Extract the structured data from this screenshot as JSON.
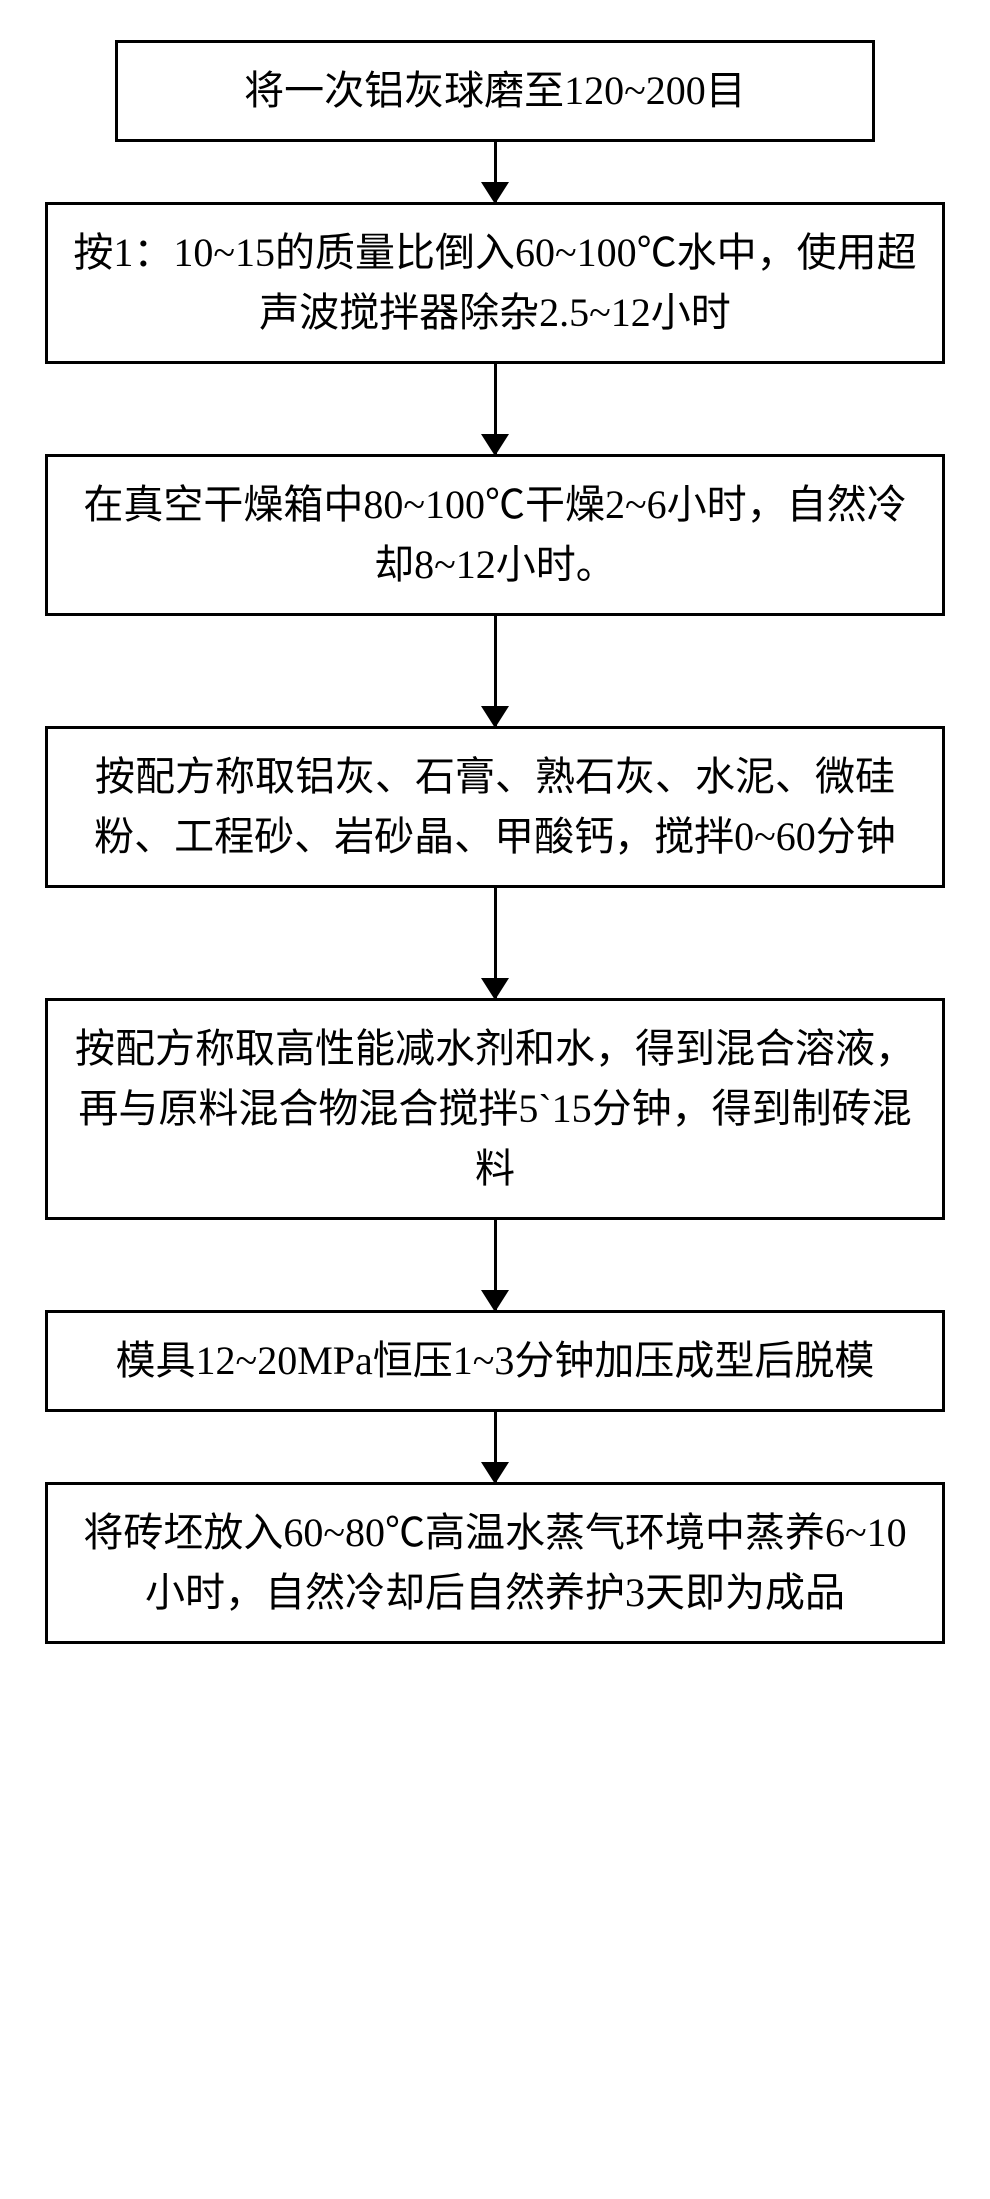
{
  "flowchart": {
    "type": "flowchart",
    "direction": "vertical",
    "background_color": "#ffffff",
    "border_color": "#000000",
    "border_width": 3,
    "text_color": "#000000",
    "font_size": 40,
    "font_family": "SimSun",
    "node_width_default": 900,
    "node_width_narrow": 760,
    "arrow_color": "#000000",
    "arrow_width": 3,
    "arrowhead_size": 22,
    "nodes": [
      {
        "id": "step1",
        "text": "将一次铝灰球磨至120~200目",
        "width": "narrow",
        "arrow_height": 60
      },
      {
        "id": "step2",
        "text": "按1：10~15的质量比倒入60~100℃水中，使用超声波搅拌器除杂2.5~12小时",
        "width": "default",
        "arrow_height": 90
      },
      {
        "id": "step3",
        "text": "在真空干燥箱中80~100℃干燥2~6小时，自然冷却8~12小时。",
        "width": "default",
        "arrow_height": 110
      },
      {
        "id": "step4",
        "text": "按配方称取铝灰、石膏、熟石灰、水泥、微硅粉、工程砂、岩砂晶、甲酸钙，搅拌0~60分钟",
        "width": "default",
        "arrow_height": 110
      },
      {
        "id": "step5",
        "text": "按配方称取高性能减水剂和水，得到混合溶液，再与原料混合物混合搅拌5`15分钟，得到制砖混料",
        "width": "default",
        "arrow_height": 90
      },
      {
        "id": "step6",
        "text": "模具12~20MPa恒压1~3分钟加压成型后脱模",
        "width": "default",
        "arrow_height": 70
      },
      {
        "id": "step7",
        "text": "将砖坯放入60~80℃高温水蒸气环境中蒸养6~10小时，自然冷却后自然养护3天即为成品",
        "width": "default",
        "arrow_height": null
      }
    ]
  }
}
